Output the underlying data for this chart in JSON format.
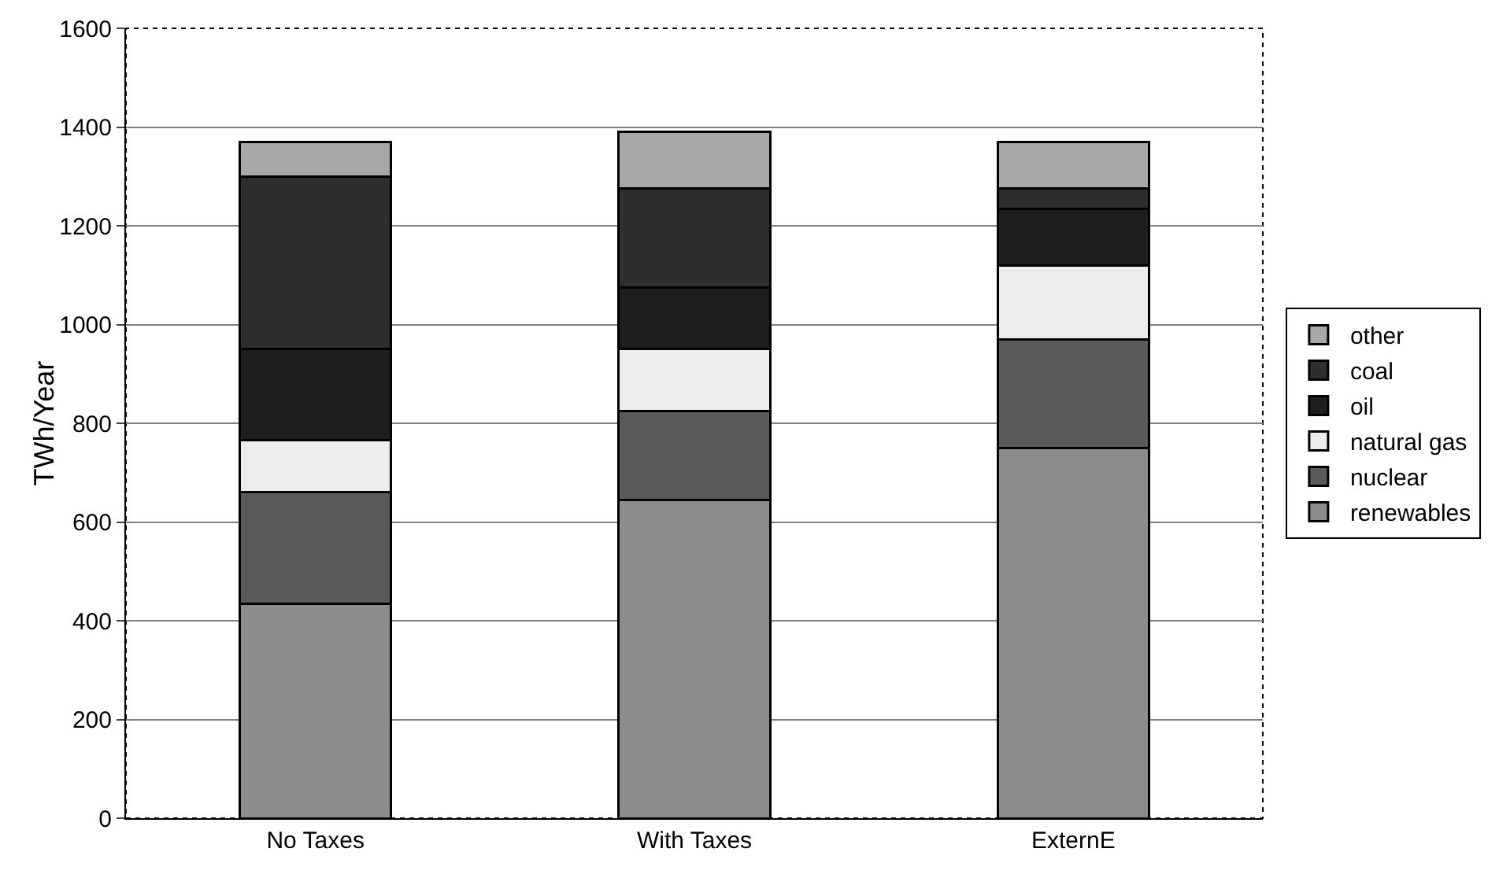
{
  "chart_data": {
    "type": "bar",
    "stacked": true,
    "ylabel": "TWh/Year",
    "categories": [
      "No Taxes",
      "With Taxes",
      "ExternE"
    ],
    "series": [
      {
        "name": "renewables",
        "color": "#8c8c8c",
        "values": [
          435,
          645,
          750
        ]
      },
      {
        "name": "nuclear",
        "color": "#5a5a5a",
        "values": [
          225,
          180,
          220
        ]
      },
      {
        "name": "natural gas",
        "color": "#ececec",
        "values": [
          105,
          125,
          150
        ]
      },
      {
        "name": "oil",
        "color": "#1e1e1e",
        "values": [
          185,
          125,
          115
        ]
      },
      {
        "name": "coal",
        "color": "#2e2e2e",
        "values": [
          350,
          200,
          40
        ]
      },
      {
        "name": "other",
        "color": "#a8a8a8",
        "values": [
          70,
          115,
          95
        ]
      }
    ],
    "ylim": [
      0,
      1600
    ],
    "yticks": [
      0,
      200,
      400,
      600,
      800,
      1000,
      1200,
      1400,
      1600
    ],
    "grid": "y",
    "legend": "right"
  }
}
